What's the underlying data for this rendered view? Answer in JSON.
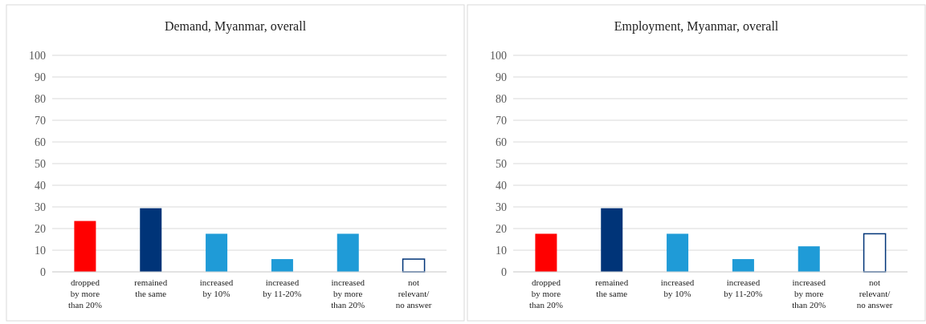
{
  "chart_data": [
    {
      "type": "bar",
      "title": "Demand, Myanmar, overall",
      "categories": [
        "dropped by more than 20%",
        "remained the same",
        "increased by 10%",
        "increased by 11-20%",
        "increased by more than 20%",
        "not relevant/ no answer"
      ],
      "values": [
        23.5,
        29.4,
        17.6,
        5.9,
        17.6,
        5.9
      ],
      "colors": [
        "#ff0000",
        "#003478",
        "#1f9bd7",
        "#1f9bd7",
        "#1f9bd7",
        "#ffffff"
      ],
      "ylim": [
        0,
        100
      ],
      "yticks": [
        0,
        10,
        20,
        30,
        40,
        50,
        60,
        70,
        80,
        90,
        100
      ],
      "grid": "y"
    },
    {
      "type": "bar",
      "title": "Employment, Myanmar, overall",
      "categories": [
        "dropped by more than 20%",
        "remained the same",
        "increased by 10%",
        "increased by 11-20%",
        "increased by more than 20%",
        "not relevant/ no answer"
      ],
      "values": [
        17.6,
        29.4,
        17.6,
        5.9,
        11.8,
        17.6
      ],
      "colors": [
        "#ff0000",
        "#003478",
        "#1f9bd7",
        "#1f9bd7",
        "#1f9bd7",
        "#ffffff"
      ],
      "ylim": [
        0,
        100
      ],
      "yticks": [
        0,
        10,
        20,
        30,
        40,
        50,
        60,
        70,
        80,
        90,
        100
      ],
      "grid": "y"
    }
  ]
}
